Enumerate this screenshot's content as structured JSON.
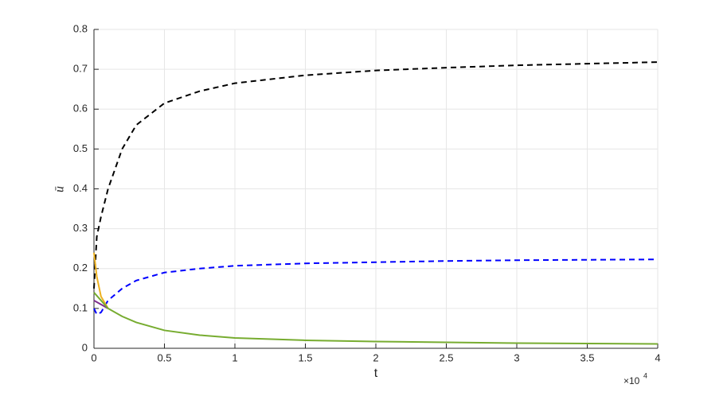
{
  "chart_data": {
    "type": "line",
    "xlabel": "t",
    "ylabel": "ū",
    "x_multiplier": {
      "base": "×10",
      "exponent": "4"
    },
    "xlim": [
      0,
      4
    ],
    "xticks": [
      0,
      0.5,
      1,
      1.5,
      2,
      2.5,
      3,
      3.5,
      4
    ],
    "ylim": [
      0,
      0.8
    ],
    "yticks": [
      0,
      0.1,
      0.2,
      0.3,
      0.4,
      0.5,
      0.6,
      0.7,
      0.8
    ],
    "grid": true,
    "series": [
      {
        "color": "#000000",
        "linestyle": "--",
        "x": [
          0,
          0.02,
          0.05,
          0.1,
          0.2,
          0.3,
          0.5,
          0.75,
          1,
          1.5,
          2,
          2.5,
          3,
          3.5,
          4
        ],
        "values": [
          0.15,
          0.28,
          0.33,
          0.4,
          0.5,
          0.56,
          0.615,
          0.645,
          0.665,
          0.685,
          0.697,
          0.704,
          0.71,
          0.714,
          0.718
        ]
      },
      {
        "color": "#0000ff",
        "linestyle": "--",
        "x": [
          0,
          0.02,
          0.05,
          0.1,
          0.2,
          0.3,
          0.5,
          0.75,
          1,
          1.5,
          2,
          2.5,
          3,
          3.5,
          4
        ],
        "values": [
          0.1,
          0.085,
          0.09,
          0.12,
          0.15,
          0.17,
          0.19,
          0.2,
          0.207,
          0.213,
          0.216,
          0.219,
          0.221,
          0.222,
          0.223
        ]
      },
      {
        "color": "#edb120",
        "linestyle": "-",
        "x": [
          0,
          0.02,
          0.05,
          0.1
        ],
        "values": [
          0.24,
          0.18,
          0.13,
          0.1
        ]
      },
      {
        "color": "#7e2f8e",
        "linestyle": "-",
        "x": [
          0,
          0.05,
          0.1
        ],
        "values": [
          0.12,
          0.11,
          0.1
        ]
      },
      {
        "color": "#77ac30",
        "linestyle": "-",
        "x": [
          0,
          0.1,
          0.2,
          0.3,
          0.5,
          0.75,
          1,
          1.5,
          2,
          2.5,
          3,
          3.5,
          4
        ],
        "values": [
          0.14,
          0.1,
          0.08,
          0.065,
          0.045,
          0.033,
          0.026,
          0.02,
          0.017,
          0.015,
          0.013,
          0.012,
          0.011
        ]
      }
    ]
  }
}
